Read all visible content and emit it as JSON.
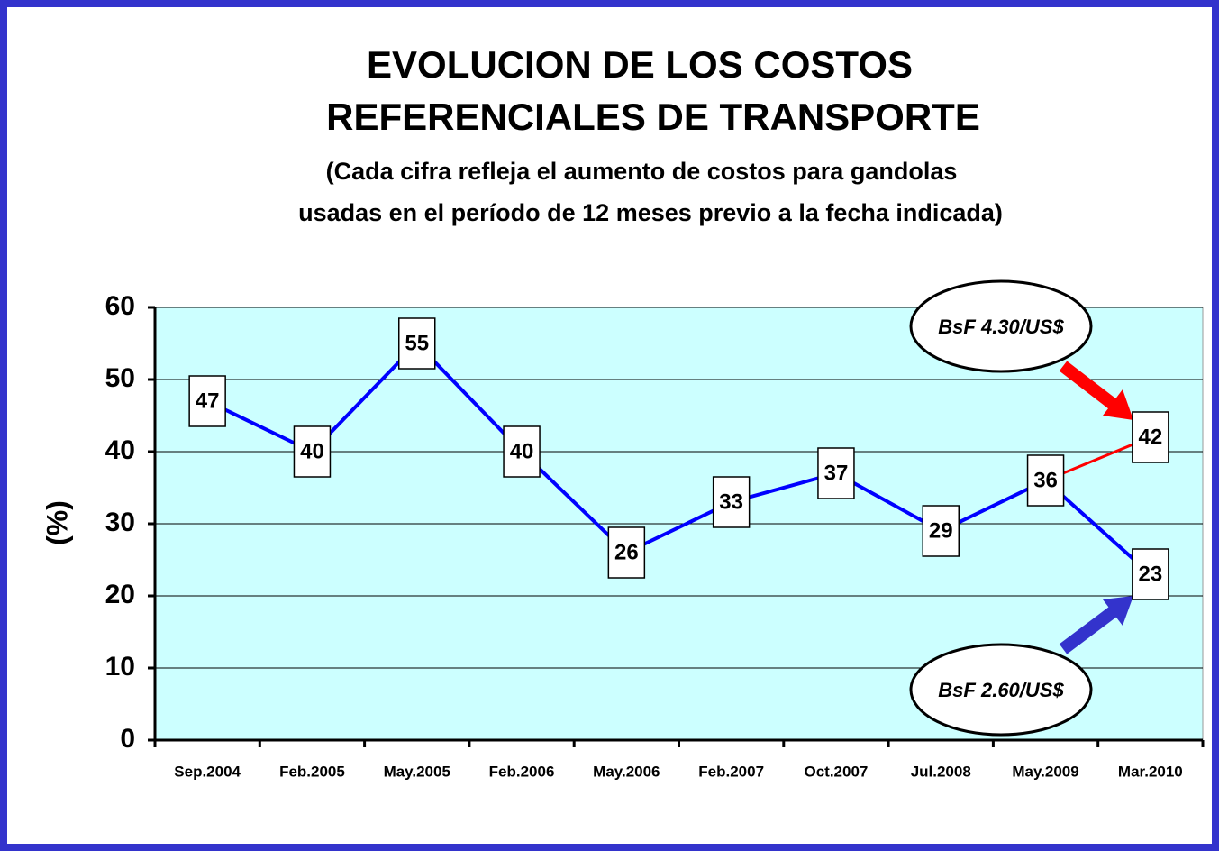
{
  "chart_data": {
    "type": "line",
    "title": [
      "EVOLUCION DE LOS COSTOS",
      "REFERENCIALES DE TRANSPORTE"
    ],
    "subtitle": [
      "(Cada cifra refleja el aumento de costos para gandolas",
      "usadas en el período de 12 meses previo a la fecha indicada)"
    ],
    "y_label": "(%)",
    "categories": [
      "Sep.2004",
      "Feb.2005",
      "May.2005",
      "Feb.2006",
      "May.2006",
      "Feb.2007",
      "Oct.2007",
      "Jul.2008",
      "May.2009",
      "Mar.2010"
    ],
    "series": [
      {
        "color": "#0000ff",
        "values": [
          47,
          40,
          55,
          40,
          26,
          33,
          37,
          29,
          36,
          23
        ]
      },
      {
        "color": "#ff0000",
        "values": [
          null,
          null,
          null,
          null,
          null,
          null,
          null,
          null,
          36,
          42
        ]
      }
    ],
    "ylim": [
      0,
      60
    ],
    "yticks": [
      0,
      10,
      20,
      30,
      40,
      50,
      60
    ],
    "grid": true,
    "annotations": [
      {
        "text": "BsF 4.30/US$",
        "color": "#ff0000"
      },
      {
        "text": "BsF 2.60/US$",
        "color": "#3333cc"
      }
    ]
  }
}
